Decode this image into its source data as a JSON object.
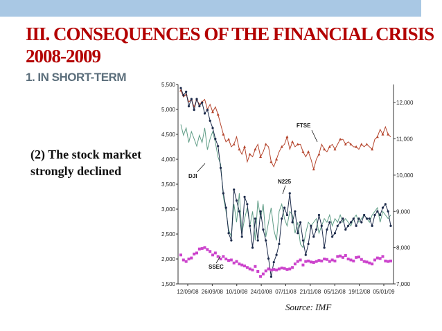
{
  "slide": {
    "title": "III. CONSEQUENCES OF THE FINANCIAL CRISIS 2008-2009",
    "subtitle": "1. IN SHORT-TERM",
    "caption": "(2) The stock market strongly declined",
    "source": "Source: IMF"
  },
  "colors": {
    "band": "#a9c8e4",
    "title": "#b30000",
    "subtitle": "#5c6f7c",
    "ftse": "#b5452d",
    "dji": "#5f9d86",
    "n225": "#1c2a4a",
    "ssec": "#cc44cc"
  },
  "chart_data": {
    "type": "line",
    "x_ticks": [
      "12/09/08",
      "26/09/08",
      "10/10/08",
      "24/10/08",
      "07/11/08",
      "21/11/08",
      "05/12/08",
      "19/12/08",
      "05/01/09"
    ],
    "y_left": {
      "ticks": [
        "5,500",
        "5,000",
        "4,500",
        "4,000",
        "3,500",
        "3,000",
        "2,500",
        "2,000",
        "1,500"
      ],
      "range": [
        1500,
        5500
      ]
    },
    "y_right": {
      "ticks": [
        "12,000",
        "11,000",
        "10,000",
        "9,000",
        "8,000",
        "7,000"
      ],
      "range": [
        7000,
        12500
      ]
    },
    "x_count": 80,
    "series": [
      {
        "name": "FTSE",
        "axis": "left",
        "marker": "triangle",
        "values": [
          5380,
          5250,
          5300,
          5150,
          5200,
          5050,
          5200,
          5100,
          5150,
          5200,
          5000,
          5100,
          4950,
          5050,
          4900,
          4700,
          4500,
          4350,
          4400,
          4250,
          4300,
          4450,
          4200,
          4100,
          4250,
          3950,
          4100,
          4050,
          4200,
          4300,
          4050,
          4150,
          4300,
          4250,
          3950,
          3850,
          4000,
          4150,
          4250,
          4300,
          4450,
          4200,
          4350,
          4250,
          4300,
          4300,
          4150,
          4050,
          4150,
          4000,
          3800,
          4000,
          4100,
          4300,
          4200,
          4150,
          4250,
          4300,
          4200,
          4300,
          4400,
          4400,
          4300,
          4350,
          4300,
          4250,
          4250,
          4200,
          4300,
          4250,
          4300,
          4250,
          4200,
          4400,
          4450,
          4600,
          4500,
          4650,
          4500,
          4450
        ]
      },
      {
        "name": "DJI",
        "axis": "right",
        "marker": "none",
        "values": [
          11400,
          11100,
          11300,
          10900,
          11200,
          11000,
          10800,
          11100,
          10900,
          11300,
          10700,
          11000,
          11200,
          10900,
          10500,
          10300,
          9400,
          9000,
          8500,
          8300,
          9200,
          8700,
          9500,
          8400,
          8800,
          9100,
          8600,
          9000,
          8200,
          9300,
          8800,
          9200,
          8300,
          8700,
          9100,
          8500,
          8200,
          9000,
          9200,
          8800,
          8600,
          9000,
          8900,
          8400,
          8700,
          8100,
          8000,
          8400,
          8700,
          8600,
          8700,
          8800,
          8400,
          8600,
          8800,
          8700,
          8900,
          8600,
          8800,
          8700,
          8900,
          8700,
          8800,
          8700,
          8600,
          8800,
          8900,
          8700,
          8800,
          8900,
          8800,
          8700,
          8900,
          9000,
          9100,
          8700,
          9000,
          8900,
          8800,
          8900
        ]
      },
      {
        "name": "N225",
        "axis": "right",
        "marker": "circle",
        "values": [
          12400,
          12200,
          12300,
          11900,
          12100,
          11800,
          12100,
          11900,
          12000,
          11700,
          11800,
          11500,
          11300,
          11000,
          10800,
          10200,
          9500,
          9100,
          8400,
          8200,
          9600,
          9300,
          9000,
          8300,
          9400,
          9200,
          8600,
          8000,
          8800,
          8200,
          9000,
          8500,
          8200,
          7700,
          7200,
          7600,
          7800,
          8100,
          8800,
          9100,
          8900,
          9500,
          8700,
          9000,
          8400,
          8700,
          8200,
          7800,
          8100,
          8600,
          8300,
          8500,
          8900,
          8600,
          8000,
          8500,
          8700,
          8300,
          8400,
          8600,
          8700,
          8800,
          8500,
          8600,
          8700,
          8800,
          8600,
          8800,
          8700,
          8900,
          8800,
          8800,
          8600,
          8900,
          9000,
          8900,
          9100,
          9200,
          9000,
          8600
        ]
      },
      {
        "name": "SSEC",
        "axis": "left",
        "marker": "square",
        "values": [
          2080,
          1980,
          1950,
          2000,
          2020,
          2100,
          2120,
          2200,
          2210,
          2230,
          2190,
          2150,
          2080,
          2120,
          2050,
          2000,
          2050,
          2000,
          1970,
          1980,
          1920,
          1950,
          1900,
          1880,
          1860,
          1830,
          1800,
          1780,
          1850,
          1750,
          1650,
          1700,
          1760,
          1800,
          1780,
          1790,
          1780,
          1800,
          1820,
          1810,
          1790,
          1800,
          1830,
          1900,
          1950,
          1980,
          1880,
          1950,
          1960,
          1940,
          1930,
          1950,
          1970,
          1960,
          2000,
          1990,
          1950,
          1980,
          1960,
          2050,
          2060,
          2030,
          2070,
          2000,
          1980,
          1960,
          2030,
          2040,
          1990,
          1950,
          1940,
          1920,
          1900,
          1980,
          2020,
          2010,
          2050,
          1960,
          1950,
          1960
        ]
      }
    ]
  }
}
